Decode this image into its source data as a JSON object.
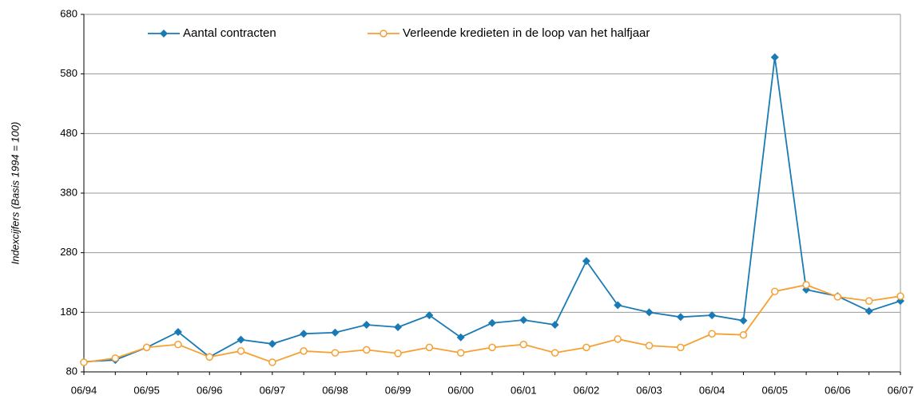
{
  "chart_data": {
    "type": "line",
    "y_label": "Indexcijfers (Basis 1994 = 100)",
    "categories": [
      "06/94",
      null,
      "06/95",
      null,
      "06/96",
      null,
      "06/97",
      null,
      "06/98",
      null,
      "06/99",
      null,
      "06/00",
      null,
      "06/01",
      null,
      "06/02",
      null,
      "06/03",
      null,
      "06/04",
      null,
      "06/05",
      null,
      "06/06",
      null,
      "06/07"
    ],
    "series": [
      {
        "name": "Aantal contracten",
        "color": "#1a7ab5",
        "marker": "diamond",
        "values": [
          97,
          100,
          121,
          147,
          105,
          134,
          127,
          144,
          146,
          159,
          155,
          175,
          138,
          162,
          167,
          159,
          266,
          192,
          180,
          172,
          175,
          166,
          608,
          218,
          207,
          182,
          199
        ]
      },
      {
        "name": "Verleende kredieten in de loop van het halfjaar",
        "color": "#f5a033",
        "marker": "circle",
        "values": [
          96,
          103,
          121,
          126,
          105,
          115,
          96,
          115,
          112,
          117,
          111,
          121,
          112,
          121,
          126,
          112,
          121,
          135,
          124,
          121,
          144,
          142,
          215,
          226,
          206,
          199,
          207
        ]
      }
    ],
    "ylim": [
      80,
      680
    ],
    "yticks": [
      80,
      180,
      280,
      380,
      480,
      580,
      680
    ],
    "grid": true,
    "legend": "top"
  }
}
